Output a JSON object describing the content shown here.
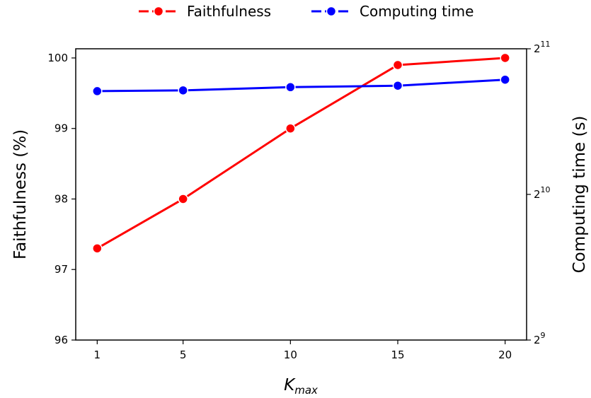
{
  "chart_data": {
    "type": "line",
    "x": [
      1,
      5,
      10,
      15,
      20
    ],
    "x_ticks": [
      "1",
      "5",
      "10",
      "15",
      "20"
    ],
    "xlim": [
      0,
      21
    ],
    "xlabel": {
      "base": "K",
      "sub": "max"
    },
    "ylabel_left": "Faithfulness (%)",
    "ylim_left": [
      96,
      100.13
    ],
    "y_ticks_left": [
      "96",
      "97",
      "98",
      "99",
      "100"
    ],
    "ylabel_right": "Computing time (s)",
    "y_scale_right": "log2",
    "ylim_right": [
      512,
      2048
    ],
    "y_ticks_right": [
      {
        "base": "2",
        "exp": "9",
        "value": 512
      },
      {
        "base": "2",
        "exp": "10",
        "value": 1024
      },
      {
        "base": "2",
        "exp": "11",
        "value": 2048
      }
    ],
    "legend_position": "top-center",
    "grid": false,
    "series": [
      {
        "name": "Faithfulness",
        "axis": "left",
        "color": "#ff0000",
        "values": [
          97.3,
          98.0,
          99.0,
          99.9,
          100.0
        ]
      },
      {
        "name": "Computing time",
        "axis": "right",
        "color": "#0000ff",
        "values": [
          1674,
          1680,
          1706,
          1718,
          1768
        ]
      }
    ]
  }
}
